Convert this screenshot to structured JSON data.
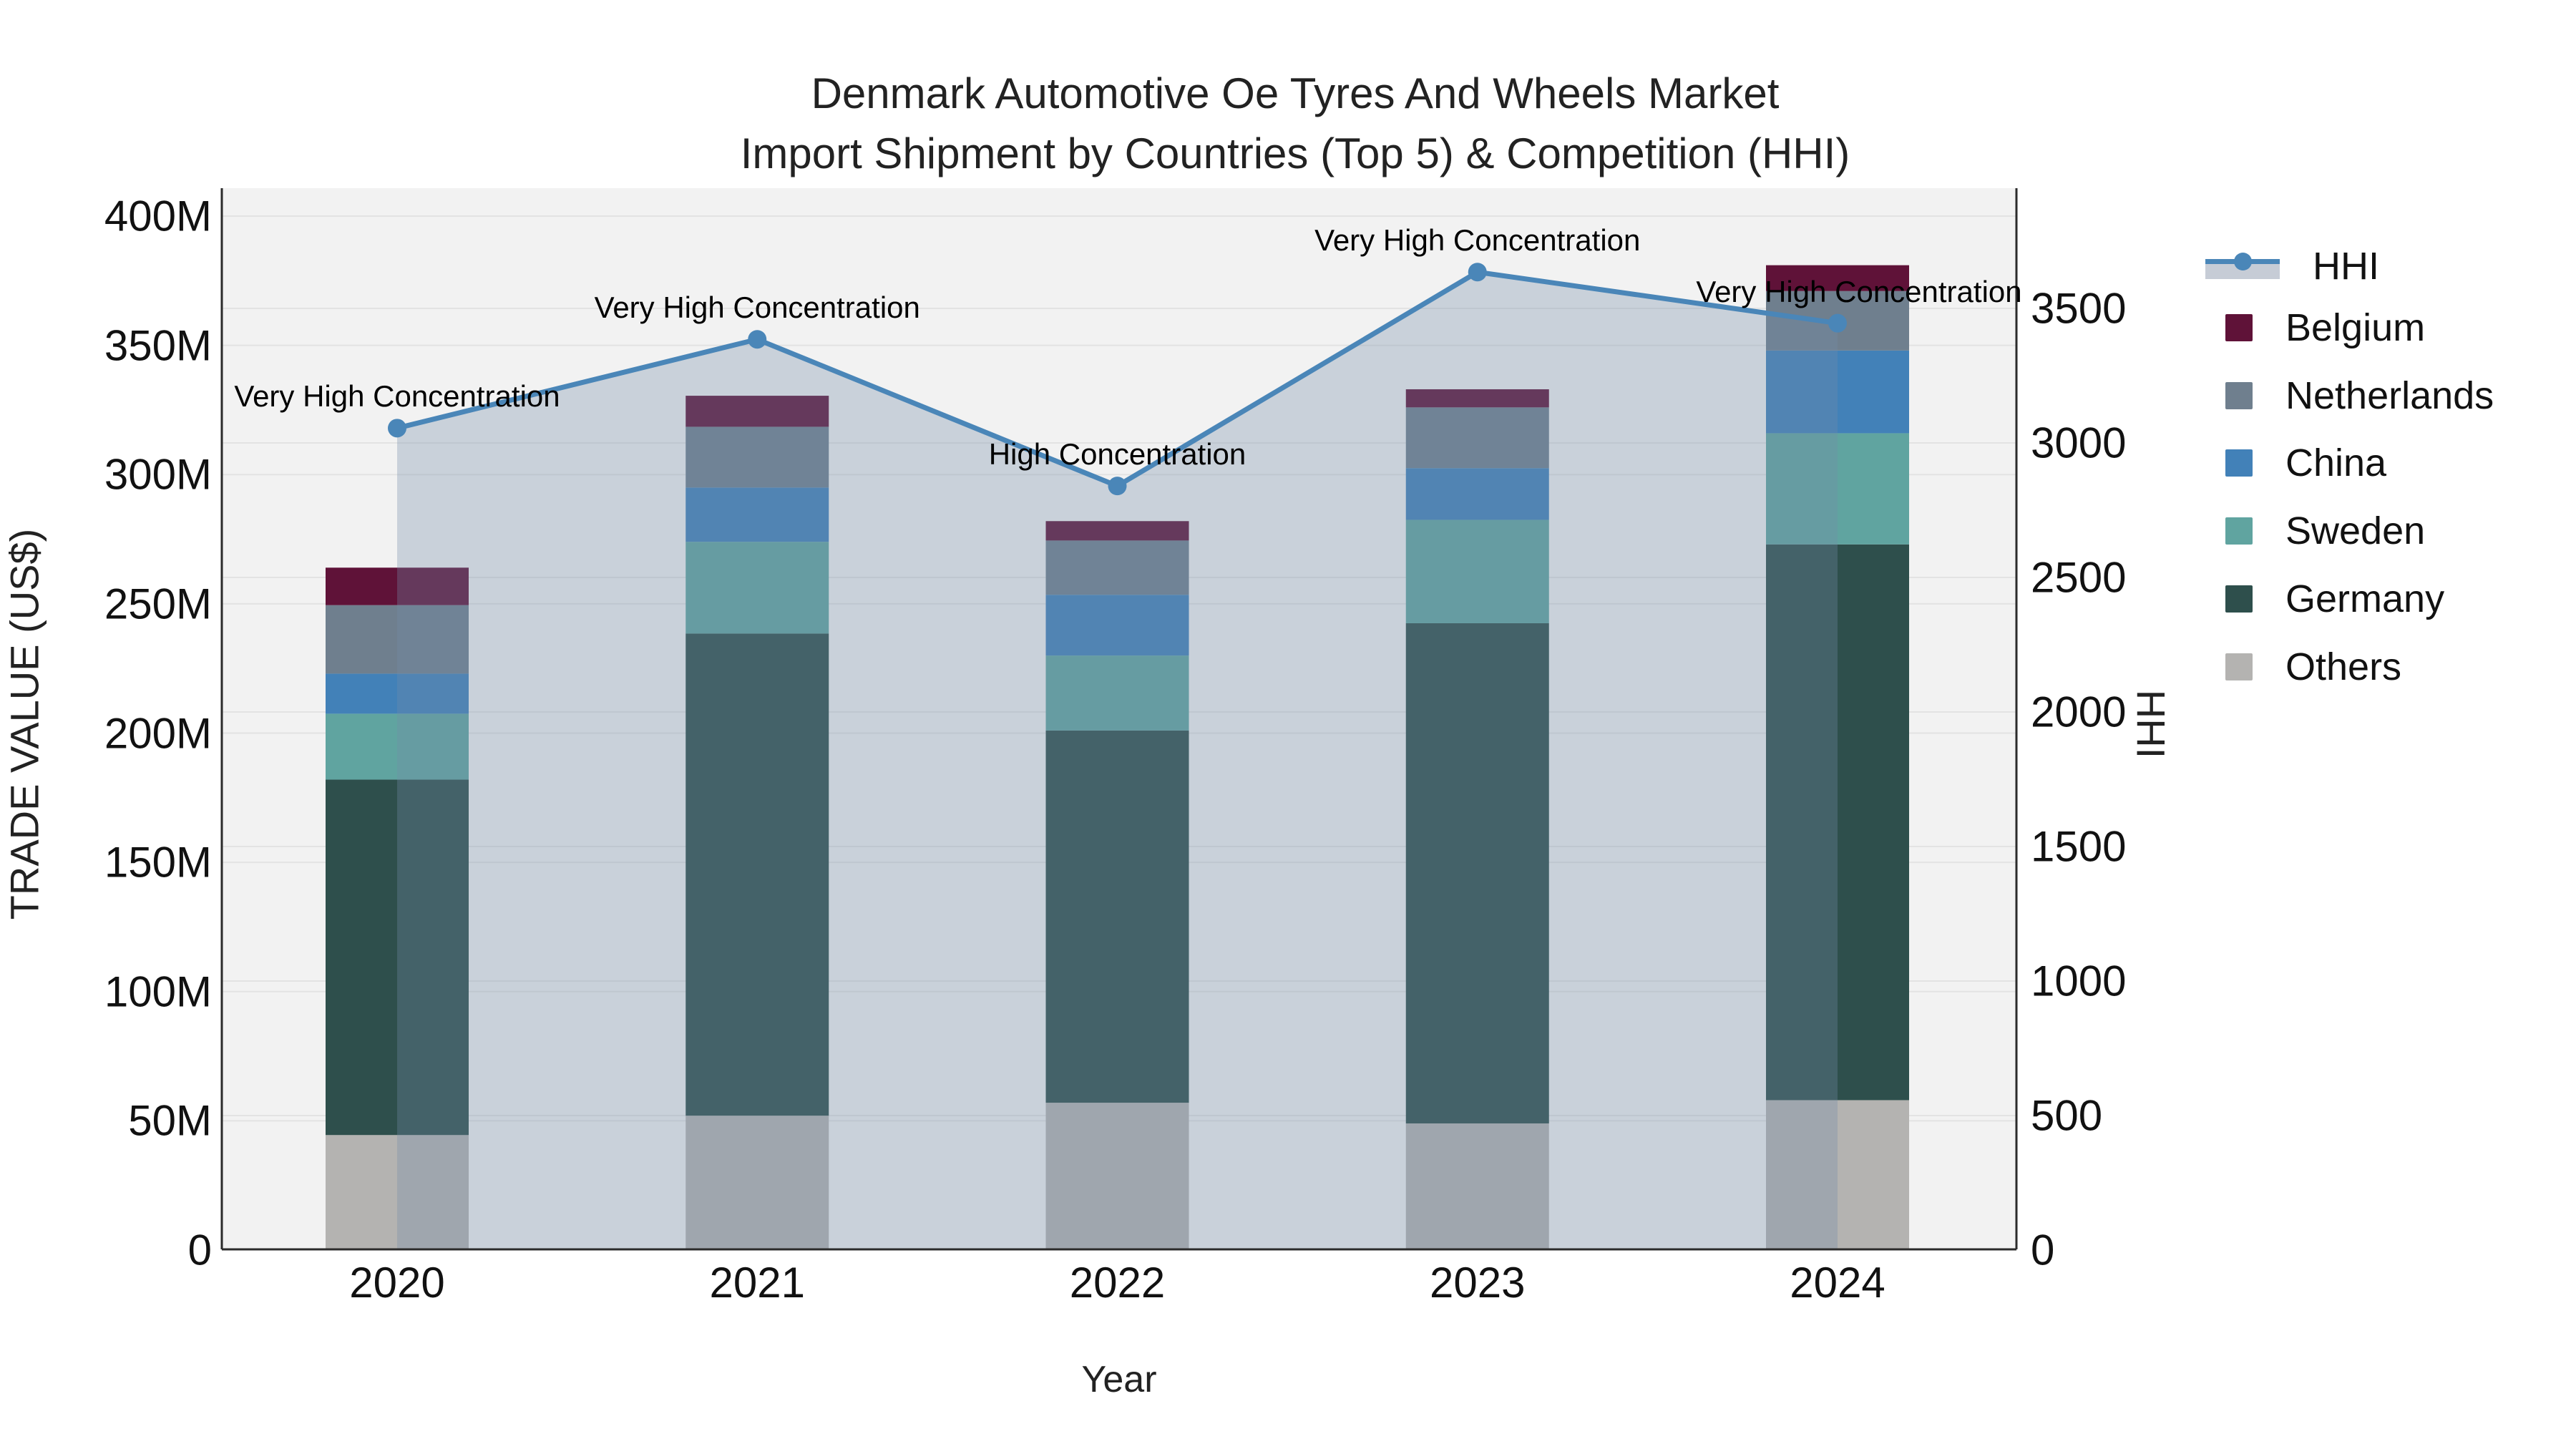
{
  "title": {
    "line1": "Denmark Automotive Oe Tyres And Wheels Market",
    "line2": "Import Shipment by Countries (Top 5) & Competition (HHI)"
  },
  "y_left": {
    "label": "TRADE VALUE (US$)",
    "ticks": [
      "0",
      "50M",
      "100M",
      "150M",
      "200M",
      "250M",
      "300M",
      "350M",
      "400M"
    ],
    "tick_values_M": [
      0,
      50,
      100,
      150,
      200,
      250,
      300,
      350,
      400
    ]
  },
  "y_right": {
    "label": "HHI",
    "ticks": [
      "0",
      "500",
      "1000",
      "1500",
      "2000",
      "2500",
      "3000",
      "3500"
    ],
    "tick_values": [
      0,
      500,
      1000,
      1500,
      2000,
      2500,
      3000,
      3500
    ]
  },
  "x_axis": {
    "label": "Year",
    "ticks": [
      "2020",
      "2021",
      "2022",
      "2023",
      "2024"
    ]
  },
  "legend": {
    "items": [
      "HHI",
      "Belgium",
      "Netherlands",
      "China",
      "Sweden",
      "Germany",
      "Others"
    ]
  },
  "colors": {
    "belgium": "#5f1238",
    "netherlands": "#6f7f8e",
    "china": "#4281b8",
    "sweden": "#60a4a0",
    "germany": "#2e4f4c",
    "others": "#b4b3b1",
    "hhi_line": "#4a86b8",
    "area_fill": "#728ba7",
    "area_fill_opacity": 0.32,
    "plot_bg": "#f2f2f2",
    "gridline": "#e3e3e3",
    "axis_line": "#2b2b2b"
  },
  "chart_data": {
    "type": "bar",
    "subtype": "stacked bars with overlaid line (dual axis)",
    "categories": [
      "2020",
      "2021",
      "2022",
      "2023",
      "2024"
    ],
    "bar_value_unit": "million US$",
    "stack_order_bottom_to_top": [
      "Others",
      "Germany",
      "Sweden",
      "China",
      "Netherlands",
      "Belgium"
    ],
    "series": [
      {
        "name": "Belgium",
        "values": [
          14.5,
          12,
          7.5,
          7,
          10
        ],
        "color": "#5f1238"
      },
      {
        "name": "Netherlands",
        "values": [
          26.5,
          23.5,
          21,
          23.5,
          23
        ],
        "color": "#6f7f8e"
      },
      {
        "name": "China",
        "values": [
          15.5,
          21,
          23.5,
          20,
          32
        ],
        "color": "#4281b8"
      },
      {
        "name": "Sweden",
        "values": [
          25.5,
          35.5,
          29,
          40,
          43
        ],
        "color": "#60a4a0"
      },
      {
        "name": "Germany",
        "values": [
          137.5,
          186.5,
          144,
          193.5,
          215
        ],
        "color": "#2e4f4c"
      },
      {
        "name": "Others",
        "values": [
          44.5,
          52,
          57,
          49,
          58
        ],
        "color": "#b4b3b1"
      }
    ],
    "bar_totals_M": [
      264,
      330.5,
      282,
      333,
      381
    ],
    "line_series": {
      "name": "HHI",
      "values": [
        3055,
        3385,
        2840,
        3635,
        3445
      ],
      "color": "#4a86b8",
      "area_fill": true,
      "axis": "right"
    },
    "annotations": [
      {
        "x": "2020",
        "text": "Very High Concentration"
      },
      {
        "x": "2021",
        "text": "Very High Concentration"
      },
      {
        "x": "2022",
        "text": "High Concentration"
      },
      {
        "x": "2023",
        "text": "Very High Concentration"
      },
      {
        "x": "2024",
        "text": "Very High Concentration"
      }
    ],
    "title": "Denmark Automotive Oe Tyres And Wheels Market Import Shipment by Countries (Top 5) & Competition (HHI)",
    "xlabel": "Year",
    "ylabel_left": "TRADE VALUE (US$)",
    "ylabel_right": "HHI",
    "ylim_left_M": [
      0,
      400
    ],
    "ylim_right": [
      0,
      3500
    ],
    "grid": true,
    "legend_position": "right"
  }
}
